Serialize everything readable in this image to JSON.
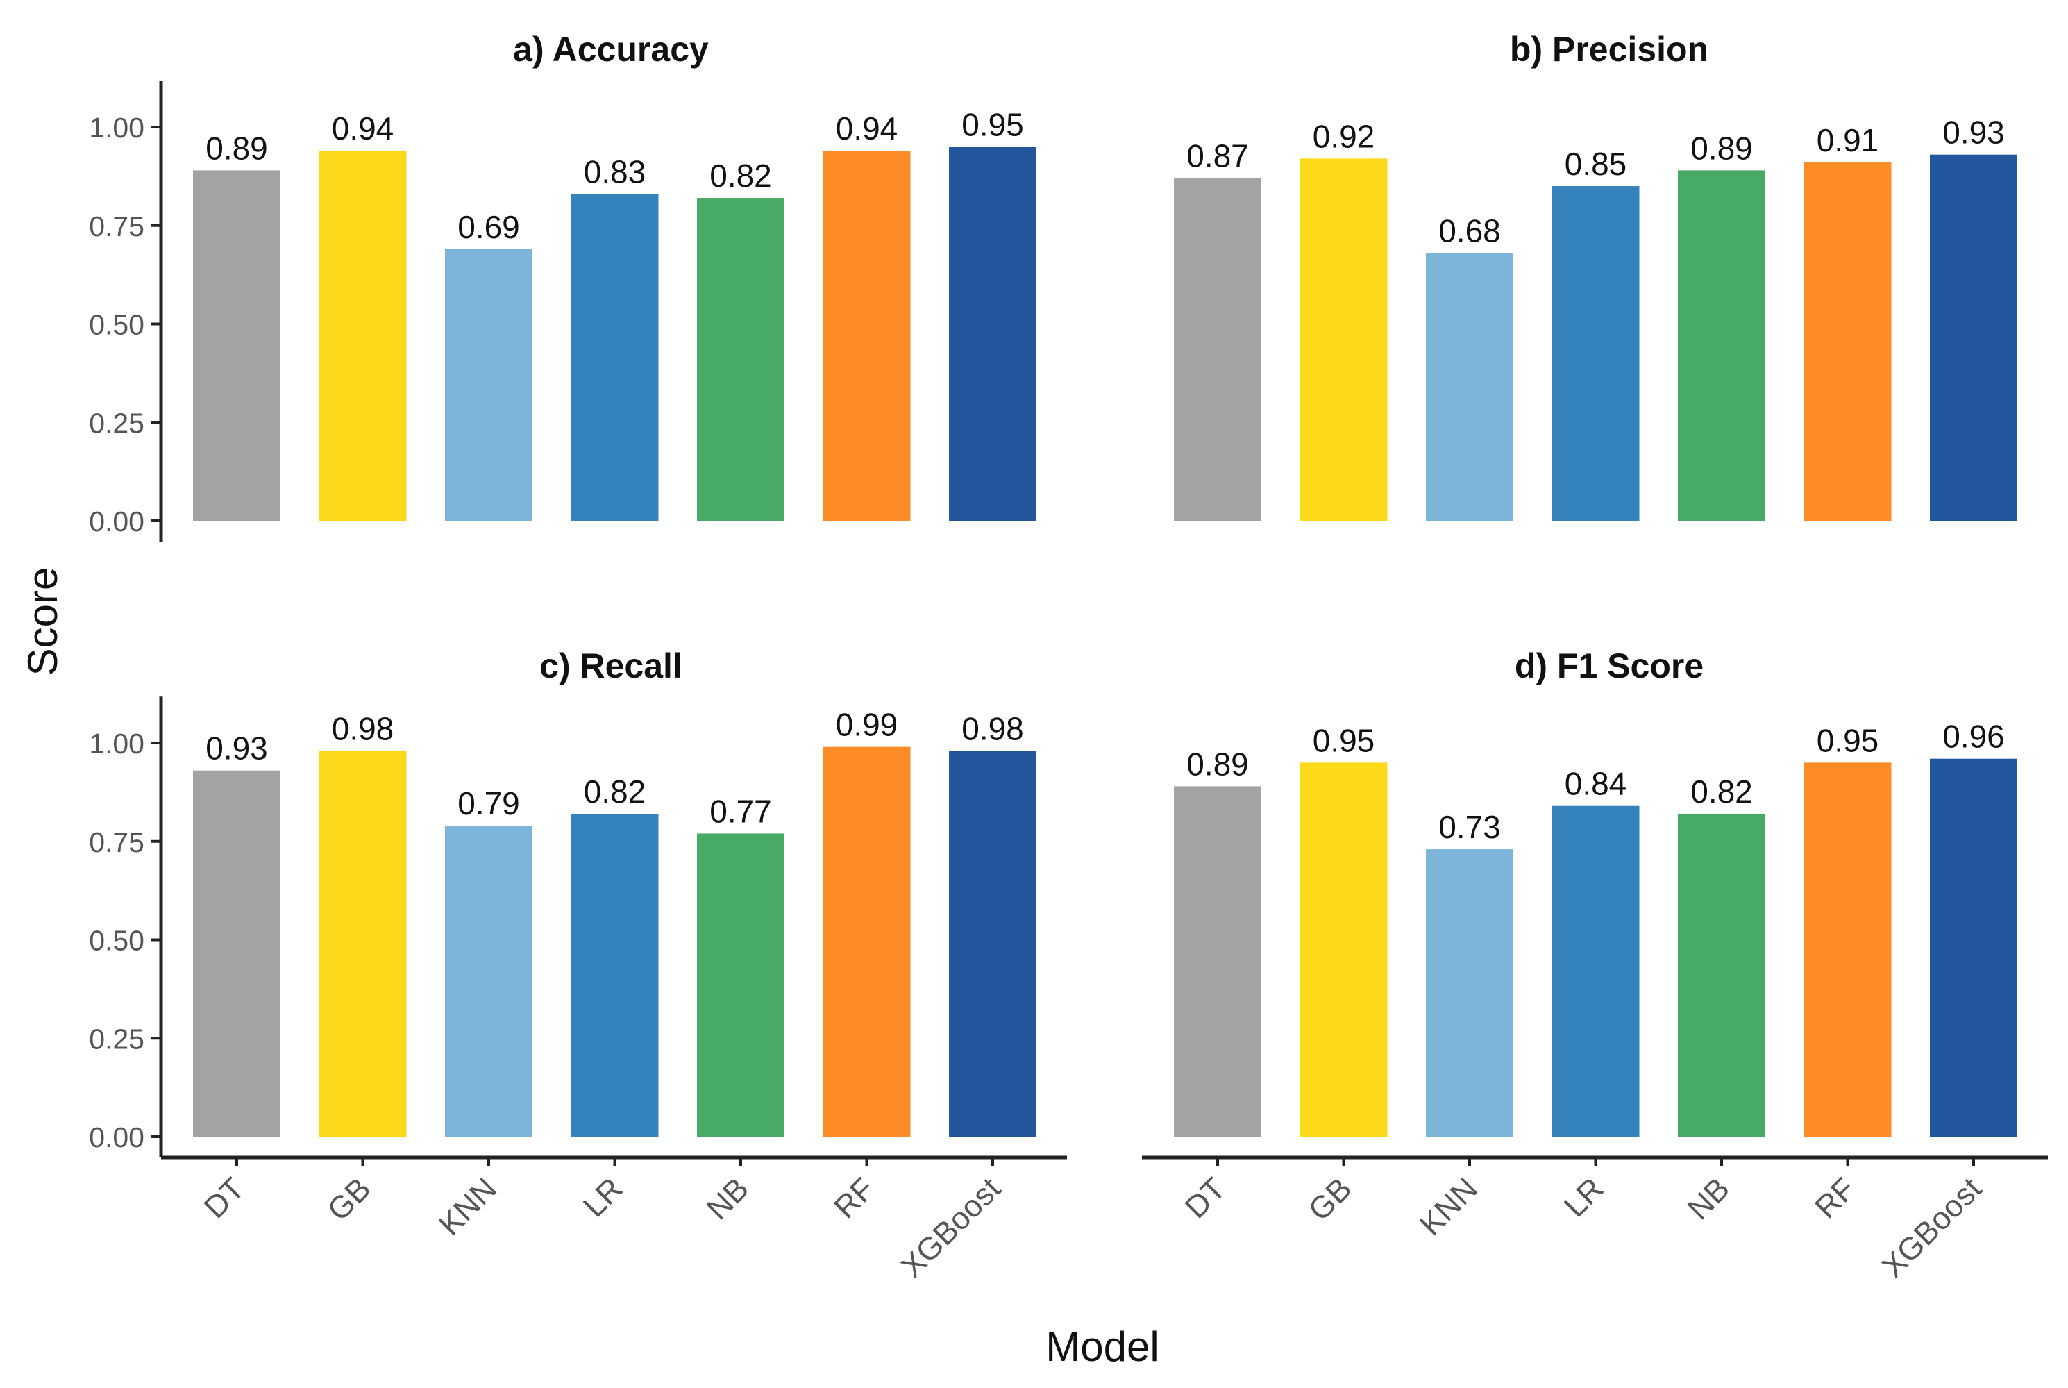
{
  "chart_data": {
    "type": "bar",
    "figure": {
      "ylabel": "Score",
      "xlabel": "Model",
      "y_ticks": [
        "0.00",
        "0.25",
        "0.50",
        "0.75",
        "1.00"
      ],
      "y_tick_values": [
        0,
        0.25,
        0.5,
        0.75,
        1.0
      ],
      "ylim": [
        0,
        1.1
      ],
      "grid": false,
      "legend": "none"
    },
    "categories": [
      "DT",
      "GB",
      "KNN",
      "LR",
      "NB",
      "RF",
      "XGBoost"
    ],
    "colors": [
      "#a3a3a3",
      "#fdd91b",
      "#7bb5da",
      "#3583bc",
      "#47ab65",
      "#fd8b26",
      "#22579d"
    ],
    "panels": [
      {
        "title": "a) Accuracy",
        "values": [
          0.89,
          0.94,
          0.69,
          0.83,
          0.82,
          0.94,
          0.95
        ],
        "labels": [
          "0.89",
          "0.94",
          "0.69",
          "0.83",
          "0.82",
          "0.94",
          "0.95"
        ]
      },
      {
        "title": "b) Precision",
        "values": [
          0.87,
          0.92,
          0.68,
          0.85,
          0.89,
          0.91,
          0.93
        ],
        "labels": [
          "0.87",
          "0.92",
          "0.68",
          "0.85",
          "0.89",
          "0.91",
          "0.93"
        ]
      },
      {
        "title": "c) Recall",
        "values": [
          0.93,
          0.98,
          0.79,
          0.82,
          0.77,
          0.99,
          0.98
        ],
        "labels": [
          "0.93",
          "0.98",
          "0.79",
          "0.82",
          "0.77",
          "0.99",
          "0.98"
        ]
      },
      {
        "title": "d) F1 Score",
        "values": [
          0.89,
          0.95,
          0.73,
          0.84,
          0.82,
          0.95,
          0.96
        ],
        "labels": [
          "0.89",
          "0.95",
          "0.73",
          "0.84",
          "0.82",
          "0.95",
          "0.96"
        ]
      }
    ]
  }
}
